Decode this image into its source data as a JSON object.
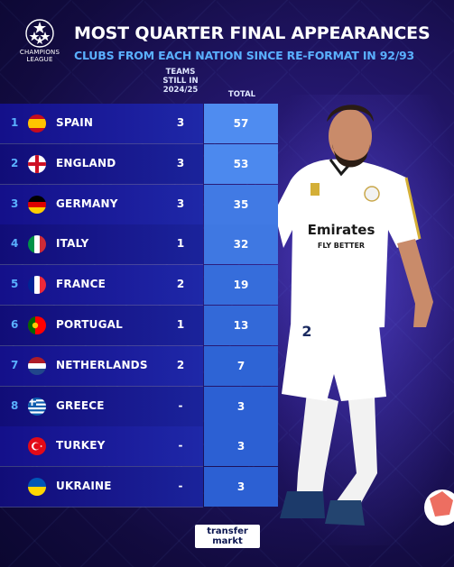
{
  "header": {
    "logo_text_line1": "CHAMPIONS",
    "logo_text_line2": "LEAGUE",
    "title": "MOST QUARTER FINAL APPEARANCES",
    "subtitle": "CLUBS FROM EACH NATION SINCE RE-FORMAT IN 92/93"
  },
  "columns": {
    "teams_line1": "TEAMS",
    "teams_line2": "STILL IN",
    "teams_line3": "2024/25",
    "total": "TOTAL"
  },
  "rows": [
    {
      "rank": "1",
      "country": "SPAIN",
      "flag": "spain-flag-icon",
      "teams": "3",
      "total": "57",
      "total_fraction": 1.0
    },
    {
      "rank": "2",
      "country": "ENGLAND",
      "flag": "england-flag-icon",
      "teams": "3",
      "total": "53",
      "total_fraction": 0.93
    },
    {
      "rank": "3",
      "country": "GERMANY",
      "flag": "germany-flag-icon",
      "teams": "3",
      "total": "35",
      "total_fraction": 0.61
    },
    {
      "rank": "4",
      "country": "ITALY",
      "flag": "italy-flag-icon",
      "teams": "1",
      "total": "32",
      "total_fraction": 0.56
    },
    {
      "rank": "5",
      "country": "FRANCE",
      "flag": "france-flag-icon",
      "teams": "2",
      "total": "19",
      "total_fraction": 0.33
    },
    {
      "rank": "6",
      "country": "PORTUGAL",
      "flag": "portugal-flag-icon",
      "teams": "1",
      "total": "13",
      "total_fraction": 0.23
    },
    {
      "rank": "7",
      "country": "NETHERLANDS",
      "flag": "netherlands-flag-icon",
      "teams": "2",
      "total": "7",
      "total_fraction": 0.12
    },
    {
      "rank": "8",
      "country": "GREECE",
      "flag": "greece-flag-icon",
      "teams": "-",
      "total": "3",
      "total_fraction": 0.05
    },
    {
      "rank": "",
      "country": "TURKEY",
      "flag": "turkey-flag-icon",
      "teams": "-",
      "total": "3",
      "total_fraction": 0.05
    },
    {
      "rank": "",
      "country": "UKRAINE",
      "flag": "ukraine-flag-icon",
      "teams": "-",
      "total": "3",
      "total_fraction": 0.05
    }
  ],
  "player": {
    "shirt_sponsor_line1": "Emirates",
    "shirt_sponsor_line2": "FLY BETTER",
    "shirt_number": "2"
  },
  "footer": {
    "brand_line1": "transfer",
    "brand_line2": "markt"
  },
  "colors": {
    "accent_blue": "#5ab0ff",
    "background_dark": "#120b3f",
    "total_box_max": "#4f8cf0",
    "total_box_min": "#2a5ed1"
  }
}
